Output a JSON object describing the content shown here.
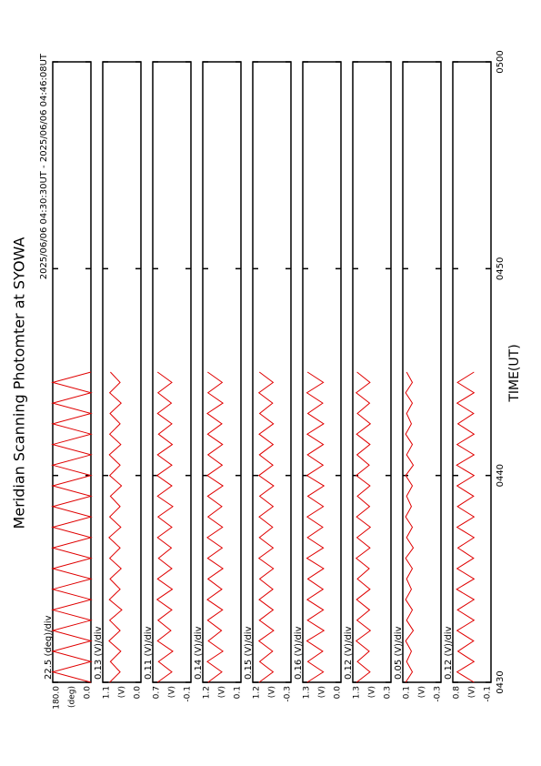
{
  "title": "Meridian Scanning Photomter at SYOWA",
  "subtitle": "2025/06/06 04:30:30UT - 2025/06/06 04:46:08UT",
  "xlabel": "TIME(UT)",
  "xlim": [
    0,
    30
  ],
  "xticks": [
    {
      "value": 0,
      "label": "0430"
    },
    {
      "value": 10,
      "label": "0440"
    },
    {
      "value": 20,
      "label": "0450"
    },
    {
      "value": 30,
      "label": "0500"
    }
  ],
  "x": [
    0,
    0.5,
    1,
    1.5,
    2,
    2.5,
    3,
    3.5,
    4,
    4.5,
    5,
    5.5,
    6,
    6.5,
    7,
    7.5,
    8,
    8.5,
    9,
    9.5,
    10,
    10.5,
    11,
    11.5,
    12,
    12.5,
    13,
    13.5,
    14,
    14.5,
    15
  ],
  "chart_data": [
    {
      "type": "line",
      "ylabel": "22.5 (deg)/div",
      "unit": "(deg)",
      "ylim": [
        0,
        180
      ],
      "yticks": [
        {
          "value": 180,
          "label": "180.0"
        },
        {
          "value": 0,
          "label": "0.0"
        }
      ],
      "series": [
        {
          "color": "#e00000",
          "values": [
            0,
            180,
            0,
            180,
            0,
            180,
            0,
            180,
            0,
            180,
            0,
            180,
            0,
            180,
            0,
            180,
            0,
            180,
            0,
            180,
            0,
            180,
            0,
            180,
            0,
            180,
            0,
            180,
            0,
            180,
            0
          ]
        }
      ]
    },
    {
      "type": "line",
      "ylabel": "0.13 (V)/div",
      "unit": "(V)",
      "ylim": [
        0,
        1.1
      ],
      "yticks": [
        1.1,
        {
          "value": 0,
          "label": "0.0"
        }
      ],
      "series": [
        {
          "color": "#e00000",
          "values": [
            0.9,
            0.6,
            0.88,
            0.58,
            0.92,
            0.6,
            0.9,
            0.55,
            0.91,
            0.6,
            0.89,
            0.57,
            0.9,
            0.6,
            0.92,
            0.58,
            0.9,
            0.6,
            0.88,
            0.56,
            0.9,
            0.6,
            0.91,
            0.58,
            0.9,
            0.6,
            0.89,
            0.57,
            0.9,
            0.6,
            0.88
          ]
        }
      ]
    },
    {
      "type": "line",
      "ylabel": "0.11 (V)/div",
      "unit": "(V)",
      "ylim": [
        -0.1,
        0.7
      ],
      "yticks": [
        0.7,
        -0.1
      ],
      "series": [
        {
          "color": "#e00000",
          "values": [
            0.6,
            0.3,
            0.58,
            0.28,
            0.6,
            0.32,
            0.59,
            0.3,
            0.61,
            0.29,
            0.6,
            0.3,
            0.58,
            0.31,
            0.6,
            0.3,
            0.59,
            0.28,
            0.6,
            0.3,
            0.61,
            0.3,
            0.6,
            0.29,
            0.58,
            0.3,
            0.6,
            0.31,
            0.59,
            0.3,
            0.6
          ]
        }
      ]
    },
    {
      "type": "line",
      "ylabel": "0.14 (V)/div",
      "unit": "(V)",
      "ylim": [
        0.1,
        1.2
      ],
      "yticks": [
        1.2,
        0.1
      ],
      "series": [
        {
          "color": "#e00000",
          "values": [
            1.05,
            0.65,
            1.07,
            0.62,
            1.04,
            0.66,
            1.06,
            0.63,
            1.07,
            0.65,
            1.05,
            0.62,
            1.06,
            0.64,
            1.07,
            0.63,
            1.05,
            0.65,
            1.06,
            0.62,
            1.07,
            0.64,
            1.05,
            0.63,
            1.06,
            0.65,
            1.07,
            0.62,
            1.05,
            0.64,
            1.06
          ]
        }
      ]
    },
    {
      "type": "line",
      "ylabel": "0.15 (V)/div",
      "unit": "(V)",
      "ylim": [
        -0.3,
        1.2
      ],
      "yticks": [
        1.2,
        -0.3
      ],
      "series": [
        {
          "color": "#e00000",
          "values": [
            0.95,
            0.4,
            0.93,
            0.42,
            0.96,
            0.38,
            0.94,
            0.4,
            0.95,
            0.41,
            0.93,
            0.39,
            0.96,
            0.4,
            0.94,
            0.42,
            0.95,
            0.4,
            0.93,
            0.38,
            0.96,
            0.41,
            0.94,
            0.4,
            0.95,
            0.39,
            0.93,
            0.42,
            0.96,
            0.4,
            0.94
          ]
        }
      ]
    },
    {
      "type": "line",
      "ylabel": "0.16 (V)/div",
      "unit": "(V)",
      "ylim": [
        0,
        1.3
      ],
      "yticks": [
        1.3,
        {
          "value": 0,
          "label": "0.0"
        }
      ],
      "series": [
        {
          "color": "#e00000",
          "values": [
            1.15,
            0.6,
            1.13,
            0.62,
            1.16,
            0.58,
            1.14,
            0.6,
            1.15,
            0.61,
            1.13,
            0.59,
            1.16,
            0.6,
            1.14,
            0.62,
            1.15,
            0.6,
            1.13,
            0.58,
            1.16,
            0.61,
            1.14,
            0.6,
            1.15,
            0.59,
            1.13,
            0.62,
            1.16,
            0.6,
            1.14
          ]
        }
      ]
    },
    {
      "type": "line",
      "ylabel": "0.12 (V)/div",
      "unit": "(V)",
      "ylim": [
        0.3,
        1.3
      ],
      "yticks": [
        1.3,
        0.3
      ],
      "series": [
        {
          "color": "#e00000",
          "values": [
            1.2,
            0.85,
            1.18,
            0.87,
            1.21,
            0.84,
            1.19,
            0.86,
            1.2,
            0.85,
            1.18,
            0.87,
            1.21,
            0.85,
            1.19,
            0.84,
            1.2,
            0.86,
            1.18,
            0.85,
            1.21,
            0.87,
            1.19,
            0.85,
            1.2,
            0.84,
            1.18,
            0.86,
            1.21,
            0.85,
            1.19
          ]
        }
      ]
    },
    {
      "type": "line",
      "ylabel": "0.05 (V)/div",
      "unit": "(V)",
      "ylim": [
        -0.3,
        0.1
      ],
      "yticks": [
        0.1,
        -0.3
      ],
      "series": [
        {
          "color": "#e00000",
          "values": [
            0.07,
            0.0,
            0.06,
            0.01,
            0.07,
            -0.01,
            0.06,
            0.0,
            0.07,
            0.01,
            0.06,
            0.0,
            0.07,
            -0.01,
            0.06,
            0.0,
            0.07,
            0.01,
            0.06,
            0.0,
            0.07,
            -0.01,
            0.06,
            0.0,
            0.07,
            0.01,
            0.06,
            0.0,
            0.07,
            0.0,
            0.06
          ]
        }
      ]
    },
    {
      "type": "line",
      "ylabel": "0.12 (V)/div",
      "unit": "(V)",
      "ylim": [
        -0.1,
        0.8
      ],
      "yticks": [
        0.8,
        -0.1
      ],
      "series": [
        {
          "color": "#e00000",
          "values": [
            0.3,
            0.7,
            0.3,
            0.68,
            0.31,
            0.7,
            0.3,
            0.69,
            0.3,
            0.71,
            0.3,
            0.7,
            0.31,
            0.68,
            0.3,
            0.7,
            0.3,
            0.69,
            0.31,
            0.7,
            0.3,
            0.71,
            0.3,
            0.7,
            0.3,
            0.68,
            0.31,
            0.7,
            0.3,
            0.69,
            0.3
          ]
        }
      ]
    }
  ]
}
